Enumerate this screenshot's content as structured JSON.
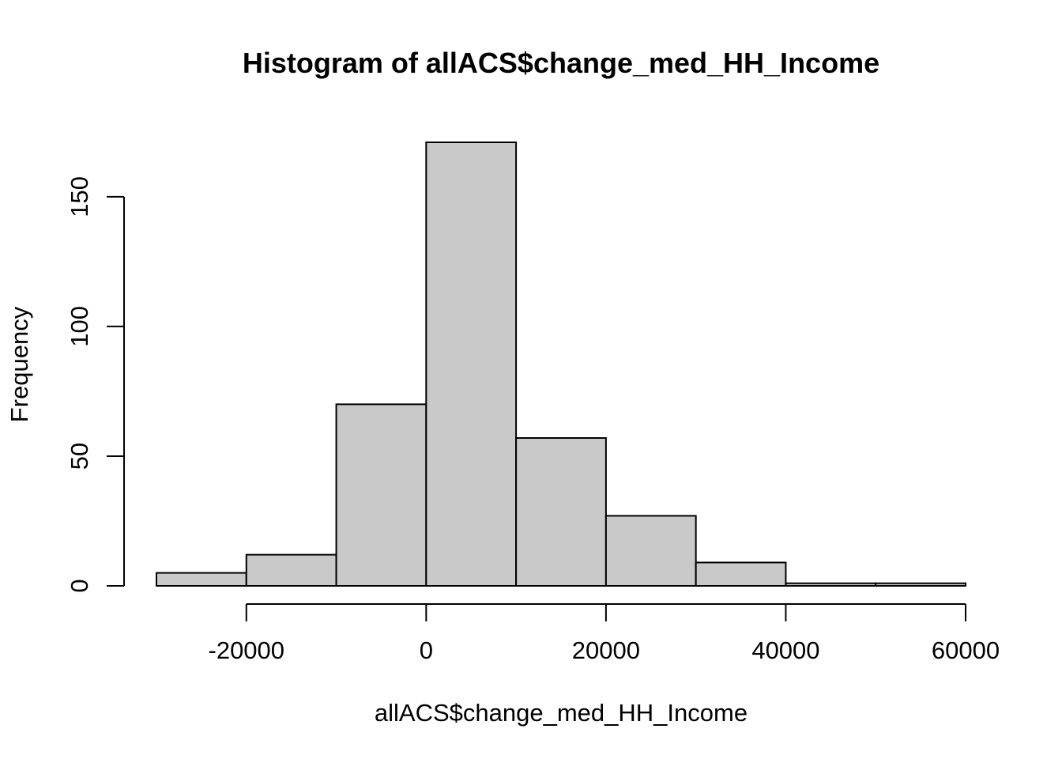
{
  "chart_data": {
    "type": "bar",
    "subtype": "histogram",
    "title": "Histogram of allACS$change_med_HH_Income",
    "xlabel": "allACS$change_med_HH_Income",
    "ylabel": "Frequency",
    "bins": [
      {
        "from": -30000,
        "to": -20000,
        "count": 5
      },
      {
        "from": -20000,
        "to": -10000,
        "count": 12
      },
      {
        "from": -10000,
        "to": 0,
        "count": 70
      },
      {
        "from": 0,
        "to": 10000,
        "count": 171
      },
      {
        "from": 10000,
        "to": 20000,
        "count": 57
      },
      {
        "from": 20000,
        "to": 30000,
        "count": 27
      },
      {
        "from": 30000,
        "to": 40000,
        "count": 9
      },
      {
        "from": 40000,
        "to": 50000,
        "count": 1
      },
      {
        "from": 50000,
        "to": 60000,
        "count": 1
      }
    ],
    "xlim": [
      -30000,
      60000
    ],
    "ylim": [
      0,
      171
    ],
    "x_ticks": [
      {
        "value": -20000,
        "label": "-20000"
      },
      {
        "value": 0,
        "label": "0"
      },
      {
        "value": 20000,
        "label": "20000"
      },
      {
        "value": 40000,
        "label": "40000"
      },
      {
        "value": 60000,
        "label": "60000"
      }
    ],
    "x_axis_range": [
      -20000,
      60000
    ],
    "y_ticks": [
      {
        "value": 0,
        "label": "0"
      },
      {
        "value": 50,
        "label": "50"
      },
      {
        "value": 100,
        "label": "100"
      },
      {
        "value": 150,
        "label": "150"
      }
    ],
    "y_axis_range": [
      0,
      150
    ],
    "bar_fill": "#c9c9c9",
    "bar_stroke": "#000000",
    "grid": false,
    "legend": "none"
  }
}
